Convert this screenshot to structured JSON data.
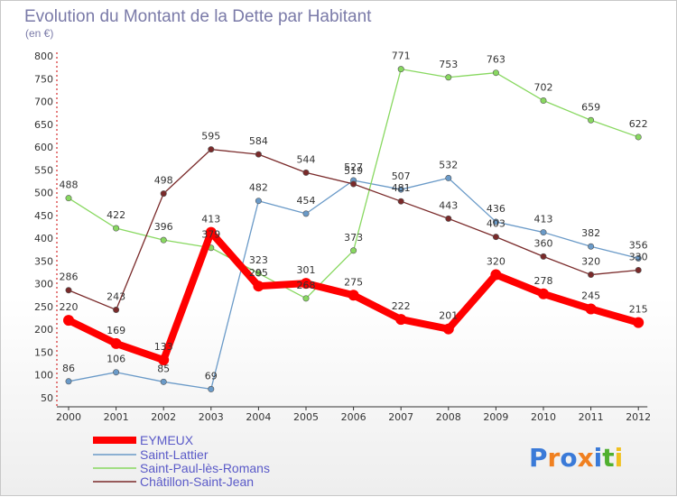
{
  "chart_data": {
    "type": "line",
    "title": "Evolution du Montant de la Dette par Habitant",
    "subtitle": "(en €)",
    "x": [
      "2000",
      "2001",
      "2002",
      "2003",
      "2004",
      "2005",
      "2006",
      "2007",
      "2008",
      "2009",
      "2010",
      "2011",
      "2012"
    ],
    "yticks": [
      "50",
      "100",
      "150",
      "200",
      "250",
      "300",
      "350",
      "400",
      "450",
      "500",
      "550",
      "600",
      "650",
      "700",
      "750",
      "800"
    ],
    "ylim": [
      50,
      800
    ],
    "grid": false,
    "legend_position": "bottom-left",
    "series": [
      {
        "name": "EYMEUX",
        "color": "#ff0000",
        "values": [
          220,
          169,
          133,
          413,
          295,
          301,
          275,
          222,
          201,
          320,
          278,
          245,
          215
        ]
      },
      {
        "name": "Saint-Lattier",
        "color": "#6a9ac8",
        "values": [
          86,
          106,
          85,
          69,
          482,
          454,
          527,
          507,
          532,
          436,
          413,
          382,
          356
        ]
      },
      {
        "name": "Saint-Paul-lès-Romans",
        "color": "#88d860",
        "values": [
          488,
          422,
          396,
          379,
          323,
          268,
          373,
          771,
          753,
          763,
          702,
          659,
          622
        ]
      },
      {
        "name": "Châtillon-Saint-Jean",
        "color": "#7a2a2a",
        "values": [
          286,
          243,
          498,
          595,
          584,
          544,
          519,
          481,
          443,
          403,
          360,
          320,
          330
        ]
      }
    ]
  },
  "logo": {
    "text": "Proxiti",
    "colors": [
      "#3a7ad8",
      "#f08020",
      "#3a7ad8",
      "#f08020",
      "#3a7ad8",
      "#50b030",
      "#f0c020"
    ]
  }
}
